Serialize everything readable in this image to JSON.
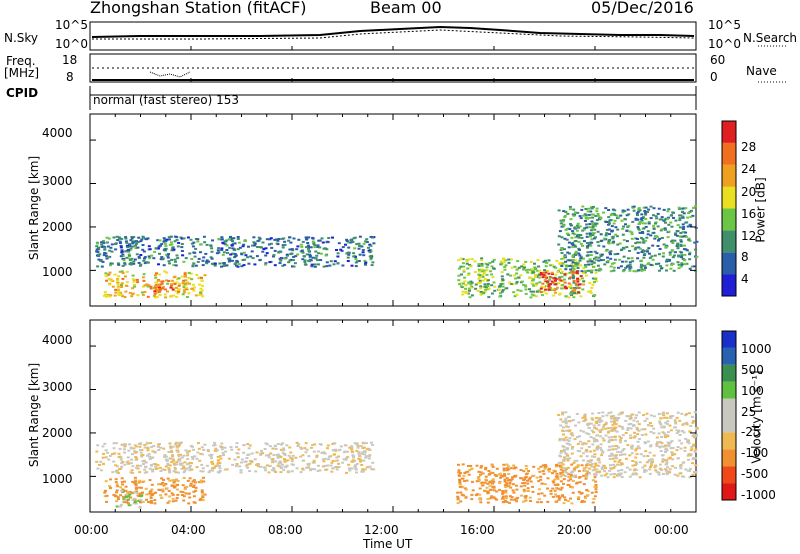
{
  "header": {
    "station": "Zhongshan Station (fitACF)",
    "beam": "Beam 00",
    "date": "05/Dec/2016"
  },
  "top_panels": {
    "nsky_label": "N.Sky",
    "nsky_ticks": [
      "10^5",
      "10^0"
    ],
    "nsearch_label": "N.Search",
    "nsearch_ticks": [
      "10^5",
      "10^0"
    ],
    "freq_label": "Freq.",
    "freq_unit": "[MHz]",
    "freq_ticks": [
      "18",
      "8"
    ],
    "nave_label": "Nave",
    "nave_ticks": [
      "60",
      "0"
    ],
    "cpid_label": "CPID",
    "cpid_text": "normal (fast stereo) 153"
  },
  "time_axis": {
    "label": "Time UT",
    "ticks": [
      "00:00",
      "04:00",
      "08:00",
      "12:00",
      "16:00",
      "20:00",
      "00:00"
    ]
  },
  "colors": {
    "power": [
      "#1f1fd6",
      "#2a5ea8",
      "#3f8f6a",
      "#6cc646",
      "#e8e020",
      "#f0a020",
      "#f07020",
      "#e02020"
    ],
    "velocity": [
      "#e01818",
      "#f04818",
      "#f09030",
      "#f0b850",
      "#c8c8c0",
      "#c8c8c0",
      "#60c040",
      "#3a8f50",
      "#2a60b0",
      "#1830c8"
    ]
  },
  "chart_data": [
    {
      "type": "heatmap",
      "title": "Power",
      "ylabel": "Slant Range [km]",
      "ylim": [
        180,
        4600
      ],
      "yticks": [
        1000,
        2000,
        3000,
        4000
      ],
      "x_range_hours": [
        0,
        24
      ],
      "colorbar": {
        "label": "Power [dB]",
        "range": [
          0,
          32
        ],
        "ticks": [
          "28",
          "24",
          "20",
          "16",
          "12",
          "8",
          "4"
        ]
      },
      "echo_regions": [
        {
          "t_start": 0.2,
          "t_end": 11.2,
          "range_low": 1100,
          "range_high": 1800,
          "power_db": 8
        },
        {
          "t_start": 0.5,
          "t_end": 4.5,
          "range_low": 400,
          "range_high": 1000,
          "power_db": 20
        },
        {
          "t_start": 2.5,
          "t_end": 3.5,
          "range_low": 500,
          "range_high": 800,
          "power_db": 26
        },
        {
          "t_start": 14.5,
          "t_end": 20.0,
          "range_low": 400,
          "range_high": 1300,
          "power_db": 14
        },
        {
          "t_start": 17.8,
          "t_end": 19.5,
          "range_low": 500,
          "range_high": 1000,
          "power_db": 28
        },
        {
          "t_start": 18.5,
          "t_end": 24.0,
          "range_low": 1000,
          "range_high": 2500,
          "power_db": 10
        }
      ]
    },
    {
      "type": "heatmap",
      "title": "Velocity",
      "ylabel": "Slant Range [km]",
      "ylim": [
        180,
        4600
      ],
      "yticks": [
        1000,
        2000,
        3000,
        4000
      ],
      "x_range_hours": [
        0,
        24
      ],
      "colorbar": {
        "label": "Velocity [m s⁻¹]",
        "range": [
          -1250,
          1250
        ],
        "ticks": [
          "1000",
          "500",
          "100",
          "25",
          "-25",
          "-100",
          "-500",
          "-1000"
        ]
      },
      "echo_regions": [
        {
          "t_start": 0.2,
          "t_end": 11.2,
          "range_low": 1100,
          "range_high": 1800,
          "velocity": 0
        },
        {
          "t_start": 0.5,
          "t_end": 4.5,
          "range_low": 400,
          "range_high": 1000,
          "velocity": -150
        },
        {
          "t_start": 1.0,
          "t_end": 2.0,
          "range_low": 300,
          "range_high": 700,
          "velocity": 120
        },
        {
          "t_start": 14.5,
          "t_end": 20.0,
          "range_low": 400,
          "range_high": 1300,
          "velocity": -150
        },
        {
          "t_start": 18.5,
          "t_end": 24.0,
          "range_low": 1000,
          "range_high": 2500,
          "velocity": 0
        }
      ]
    }
  ]
}
